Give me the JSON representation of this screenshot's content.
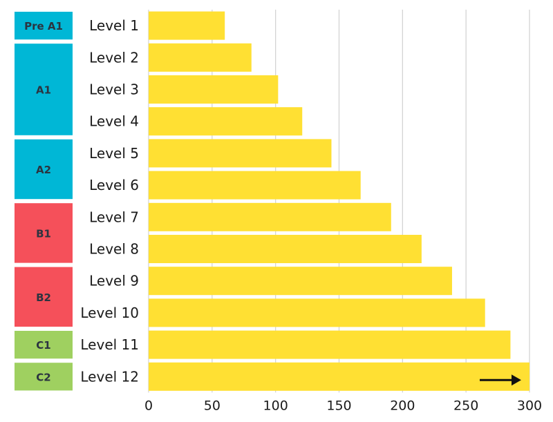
{
  "chart_data": {
    "type": "bar",
    "orientation": "horizontal",
    "title": "",
    "xlabel": "",
    "ylabel": "",
    "categories": [
      "Level 1",
      "Level 2",
      "Level 3",
      "Level 4",
      "Level 5",
      "Level 6",
      "Level 7",
      "Level 8",
      "Level 9",
      "Level 10",
      "Level 11",
      "Level 12"
    ],
    "values": [
      60,
      81,
      102,
      121,
      144,
      167,
      191,
      215,
      239,
      265,
      285,
      300
    ],
    "xlim": [
      0,
      300
    ],
    "xticks": [
      "0",
      "50",
      "100",
      "150",
      "200",
      "250",
      "300"
    ],
    "grid": "vertical",
    "legend": "none",
    "bar_color": "#ffe033",
    "continuation_arrow": {
      "category": "Level 12",
      "direction": "right",
      "color": "#111111"
    },
    "cefr_bands": [
      {
        "label": "Pre A1",
        "levels": [
          "Level 1"
        ],
        "color": "#00b7d6"
      },
      {
        "label": "A1",
        "levels": [
          "Level 2",
          "Level 3",
          "Level 4"
        ],
        "color": "#00b7d6"
      },
      {
        "label": "A2",
        "levels": [
          "Level 5",
          "Level 6"
        ],
        "color": "#00b7d6"
      },
      {
        "label": "B1",
        "levels": [
          "Level 7",
          "Level 8"
        ],
        "color": "#f5505a"
      },
      {
        "label": "B2",
        "levels": [
          "Level 9",
          "Level 10"
        ],
        "color": "#f5505a"
      },
      {
        "label": "C1",
        "levels": [
          "Level 11"
        ],
        "color": "#9fd060"
      },
      {
        "label": "C2",
        "levels": [
          "Level 12"
        ],
        "color": "#9fd060"
      }
    ]
  }
}
